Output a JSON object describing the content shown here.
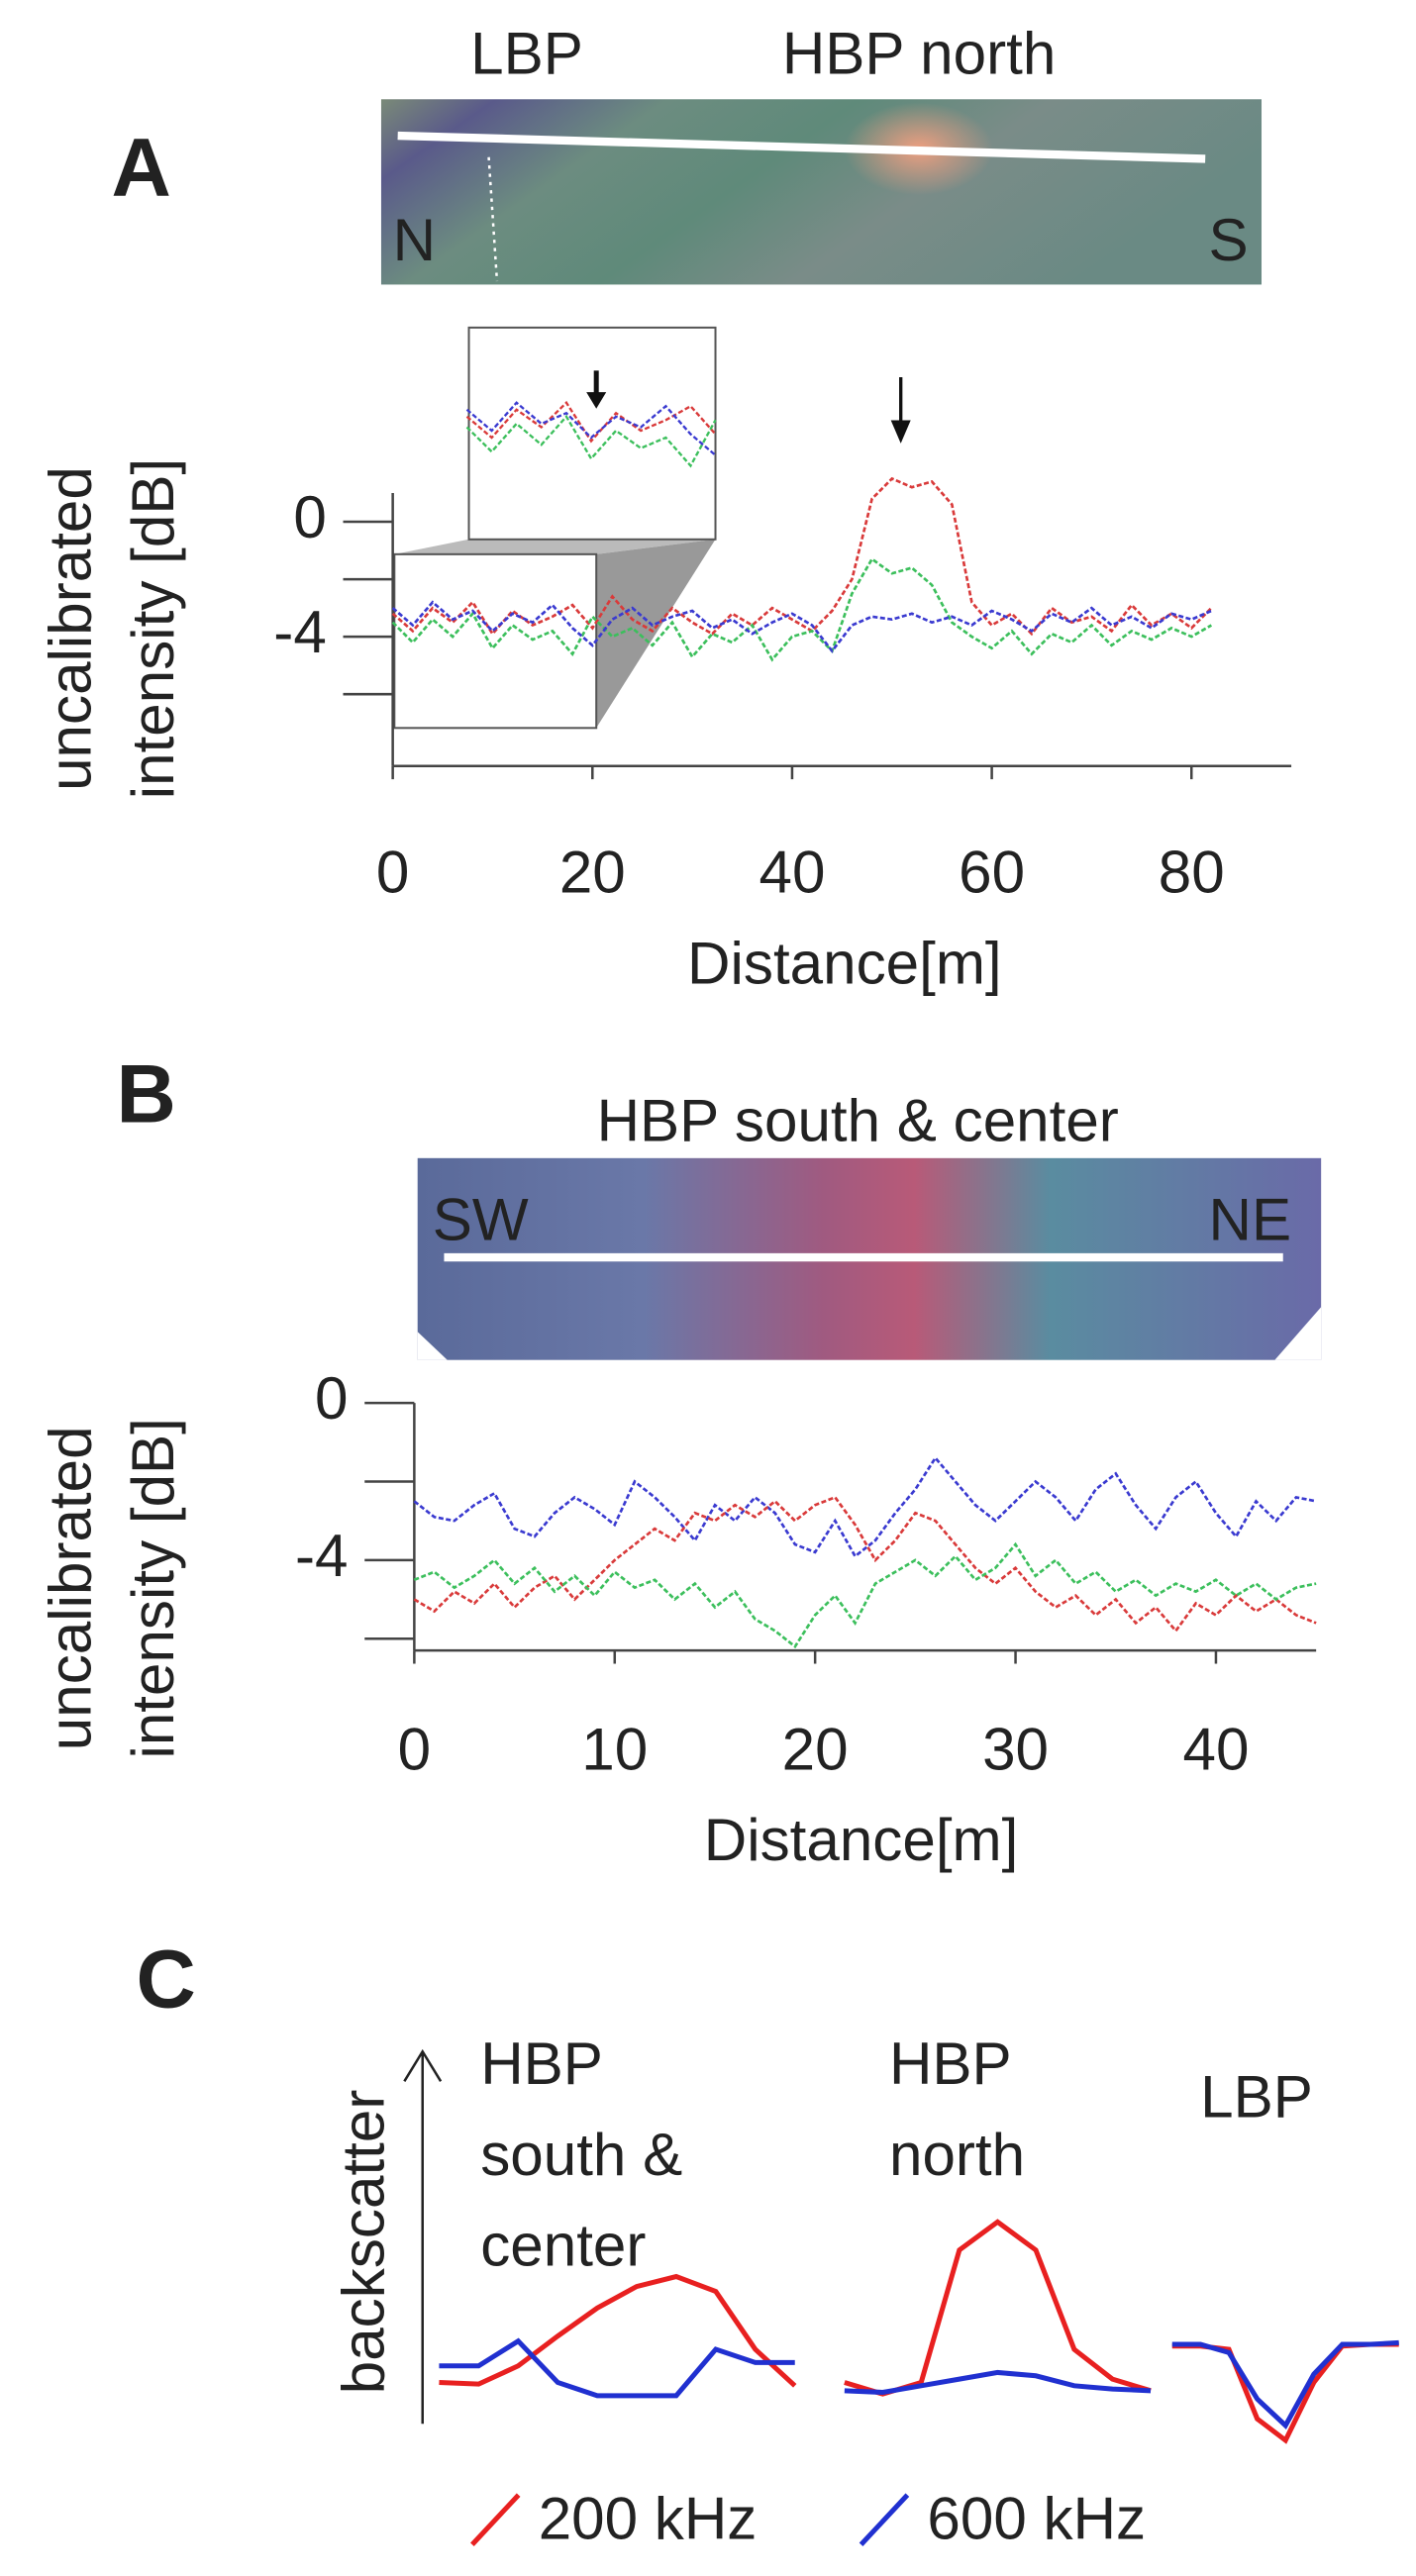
{
  "chart_data": [
    {
      "type": "line",
      "panel": "A",
      "image_labels": [
        "LBP",
        "HBP north",
        "N",
        "S"
      ],
      "ylabel": [
        "uncalibrated",
        "intensity [dB]"
      ],
      "xlabel": "Distance[m]",
      "x": [
        0,
        2,
        4,
        6,
        8,
        10,
        12,
        14,
        16,
        18,
        20,
        22,
        24,
        26,
        28,
        30,
        32,
        34,
        36,
        38,
        40,
        42,
        44,
        46,
        48,
        50,
        52,
        54,
        56,
        58,
        60,
        62,
        64,
        66,
        68,
        70,
        72,
        74,
        76,
        78,
        80,
        82
      ],
      "series": [
        {
          "color": "#d93a3a",
          "values": [
            -3.2,
            -3.8,
            -3.0,
            -3.5,
            -2.8,
            -3.9,
            -3.1,
            -3.6,
            -3.3,
            -2.9,
            -3.7,
            -2.6,
            -3.4,
            -3.8,
            -3.0,
            -3.5,
            -3.9,
            -3.2,
            -3.6,
            -3.0,
            -3.4,
            -3.8,
            -3.1,
            -2.0,
            0.8,
            1.5,
            1.2,
            1.4,
            0.6,
            -2.8,
            -3.6,
            -3.2,
            -3.9,
            -3.0,
            -3.5,
            -3.3,
            -3.8,
            -2.9,
            -3.6,
            -3.2,
            -3.7,
            -3.0
          ]
        },
        {
          "color": "#3cbf5c",
          "values": [
            -3.5,
            -4.2,
            -3.4,
            -4.0,
            -3.2,
            -4.4,
            -3.6,
            -4.1,
            -3.8,
            -4.6,
            -3.3,
            -4.0,
            -3.7,
            -4.3,
            -3.5,
            -4.7,
            -3.9,
            -4.2,
            -3.6,
            -4.8,
            -4.0,
            -3.8,
            -4.5,
            -2.5,
            -1.3,
            -1.8,
            -1.6,
            -2.2,
            -3.5,
            -4.0,
            -4.4,
            -3.8,
            -4.6,
            -3.9,
            -4.2,
            -3.6,
            -4.3,
            -3.8,
            -4.1,
            -3.7,
            -4.0,
            -3.6
          ]
        },
        {
          "color": "#3a3ad0",
          "values": [
            -3.0,
            -3.6,
            -2.8,
            -3.4,
            -3.1,
            -3.8,
            -3.2,
            -3.5,
            -2.9,
            -3.7,
            -4.3,
            -3.4,
            -3.0,
            -3.6,
            -3.3,
            -3.1,
            -3.7,
            -3.4,
            -3.9,
            -3.5,
            -3.2,
            -3.6,
            -4.5,
            -3.6,
            -3.3,
            -3.4,
            -3.2,
            -3.5,
            -3.3,
            -3.6,
            -3.1,
            -3.4,
            -3.8,
            -3.2,
            -3.5,
            -3.0,
            -3.6,
            -3.3,
            -3.7,
            -3.2,
            -3.4,
            -3.1
          ]
        }
      ],
      "xlim": [
        0,
        90
      ],
      "xticks": [
        0,
        20,
        40,
        60,
        80
      ],
      "ylim": [
        -8.5,
        1
      ],
      "yticks": [
        0,
        -4
      ],
      "yminor": [
        -2,
        -6
      ]
    },
    {
      "type": "line",
      "panel": "B",
      "title": "HBP south & center",
      "image_labels": [
        "SW",
        "NE"
      ],
      "ylabel": [
        "uncalibrated",
        "intensity [dB]"
      ],
      "xlabel": "Distance[m]",
      "x": [
        0,
        1,
        2,
        3,
        4,
        5,
        6,
        7,
        8,
        9,
        10,
        11,
        12,
        13,
        14,
        15,
        16,
        17,
        18,
        19,
        20,
        21,
        22,
        23,
        24,
        25,
        26,
        27,
        28,
        29,
        30,
        31,
        32,
        33,
        34,
        35,
        36,
        37,
        38,
        39,
        40,
        41,
        42,
        43,
        44,
        45
      ],
      "series": [
        {
          "color": "#3a3ad0",
          "values": [
            -2.5,
            -2.9,
            -3.0,
            -2.6,
            -2.3,
            -3.2,
            -3.4,
            -2.8,
            -2.4,
            -2.7,
            -3.1,
            -2.0,
            -2.4,
            -2.9,
            -3.5,
            -2.6,
            -3.0,
            -2.4,
            -2.8,
            -3.6,
            -3.8,
            -3.0,
            -3.9,
            -3.5,
            -2.8,
            -2.2,
            -1.4,
            -2.0,
            -2.6,
            -3.0,
            -2.5,
            -2.0,
            -2.4,
            -3.0,
            -2.2,
            -1.8,
            -2.6,
            -3.2,
            -2.4,
            -2.0,
            -2.8,
            -3.4,
            -2.5,
            -3.0,
            -2.4,
            -2.5
          ]
        },
        {
          "color": "#d93a3a",
          "values": [
            -5.0,
            -5.3,
            -4.8,
            -5.1,
            -4.6,
            -5.2,
            -4.7,
            -4.4,
            -5.0,
            -4.5,
            -4.0,
            -3.6,
            -3.2,
            -3.5,
            -2.8,
            -3.0,
            -2.6,
            -2.9,
            -2.5,
            -3.0,
            -2.6,
            -2.4,
            -3.1,
            -4.0,
            -3.5,
            -2.8,
            -3.0,
            -3.6,
            -4.2,
            -4.6,
            -4.2,
            -4.8,
            -5.2,
            -4.9,
            -5.4,
            -5.0,
            -5.6,
            -5.2,
            -5.8,
            -5.1,
            -5.4,
            -4.9,
            -5.3,
            -5.0,
            -5.4,
            -5.6
          ]
        },
        {
          "color": "#3cbf5c",
          "values": [
            -4.5,
            -4.3,
            -4.7,
            -4.4,
            -4.0,
            -4.6,
            -4.2,
            -4.8,
            -4.4,
            -4.9,
            -4.3,
            -4.7,
            -4.5,
            -5.0,
            -4.6,
            -5.2,
            -4.8,
            -5.5,
            -5.8,
            -6.2,
            -5.4,
            -4.9,
            -5.6,
            -4.6,
            -4.3,
            -4.0,
            -4.4,
            -3.9,
            -4.5,
            -4.2,
            -3.6,
            -4.4,
            -4.0,
            -4.6,
            -4.3,
            -4.8,
            -4.5,
            -4.9,
            -4.6,
            -4.8,
            -4.5,
            -4.9,
            -4.6,
            -5.0,
            -4.7,
            -4.6
          ]
        }
      ],
      "xlim": [
        0,
        45
      ],
      "xticks": [
        0,
        10,
        20,
        30,
        40
      ],
      "ylim": [
        -6.3,
        0
      ],
      "yticks": [
        0,
        -4
      ],
      "yminor": [
        -2,
        -6
      ]
    },
    {
      "type": "schematic",
      "panel": "C",
      "ylabel": "backscatter",
      "legend": [
        {
          "name": "200 kHz",
          "color": "#e82020"
        },
        {
          "name": "600 kHz",
          "color": "#2030d0"
        }
      ],
      "ylim": [
        -4,
        12
      ],
      "groups": [
        {
          "label": [
            "HBP",
            "south &",
            "center"
          ],
          "series": [
            {
              "values": [
                1,
                0.9,
                2,
                3.8,
                5.5,
                6.8,
                7.4,
                6.5,
                3,
                0.8
              ]
            },
            {
              "values": [
                2,
                2,
                3.5,
                1,
                0.2,
                0.2,
                0.2,
                3,
                2.2,
                2.2
              ]
            }
          ]
        },
        {
          "label": [
            "HBP",
            "north"
          ],
          "series": [
            {
              "values": [
                1,
                0.3,
                1,
                9,
                10.7,
                9,
                3,
                1.2,
                0.5
              ]
            },
            {
              "values": [
                0.5,
                0.4,
                0.8,
                1.2,
                1.6,
                1.4,
                0.8,
                0.6,
                0.5
              ]
            }
          ]
        },
        {
          "label": [
            "LBP"
          ],
          "series": [
            {
              "values": [
                3.2,
                3.2,
                3,
                -1.2,
                -2.5,
                1,
                3.2,
                3.3,
                3.3
              ]
            },
            {
              "values": [
                3.3,
                3.3,
                2.8,
                0,
                -1.6,
                1.5,
                3.3,
                3.3,
                3.4
              ]
            }
          ]
        }
      ]
    }
  ]
}
